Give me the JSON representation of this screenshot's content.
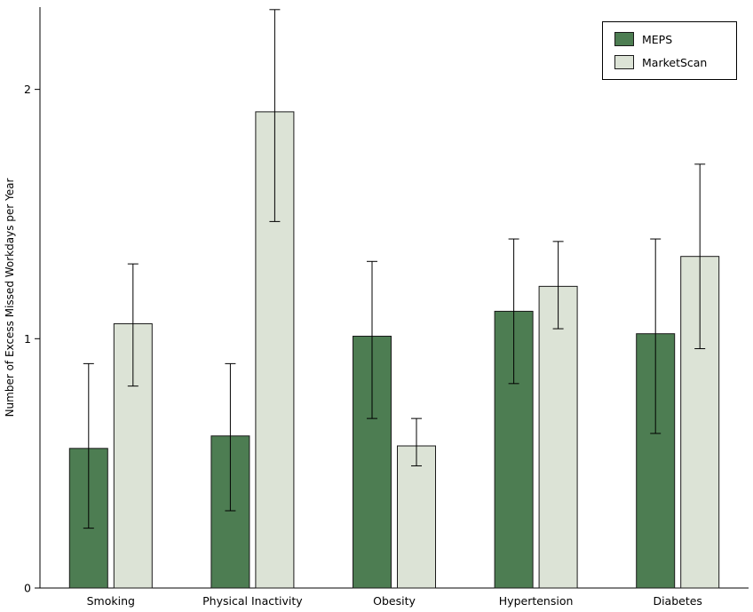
{
  "chart_data": {
    "type": "bar",
    "title": "",
    "xlabel": "",
    "ylabel": "Number of Excess Missed Workdays per Year",
    "categories": [
      "Smoking",
      "Physical Inactivity",
      "Obesity",
      "Hypertension",
      "Diabetes"
    ],
    "series": [
      {
        "name": "MEPS",
        "color": "#4d7d52",
        "values": [
          0.56,
          0.61,
          1.01,
          1.11,
          1.02
        ],
        "err_low": [
          0.24,
          0.31,
          0.68,
          0.82,
          0.62
        ],
        "err_high": [
          0.9,
          0.9,
          1.31,
          1.4,
          1.4
        ]
      },
      {
        "name": "MarketScan",
        "color": "#dce3d6",
        "values": [
          1.06,
          1.91,
          0.57,
          1.21,
          1.33
        ],
        "err_low": [
          0.81,
          1.47,
          0.49,
          1.04,
          0.96
        ],
        "err_high": [
          1.3,
          2.32,
          0.68,
          1.39,
          1.7
        ]
      }
    ],
    "ylim": [
      0,
      2.33
    ],
    "yticks": [
      0,
      1,
      2
    ],
    "grid": false,
    "error_bars": true,
    "legend_position": "top-right",
    "axis_color": "#000000",
    "bar_outline_color": "#1a1a1a"
  }
}
